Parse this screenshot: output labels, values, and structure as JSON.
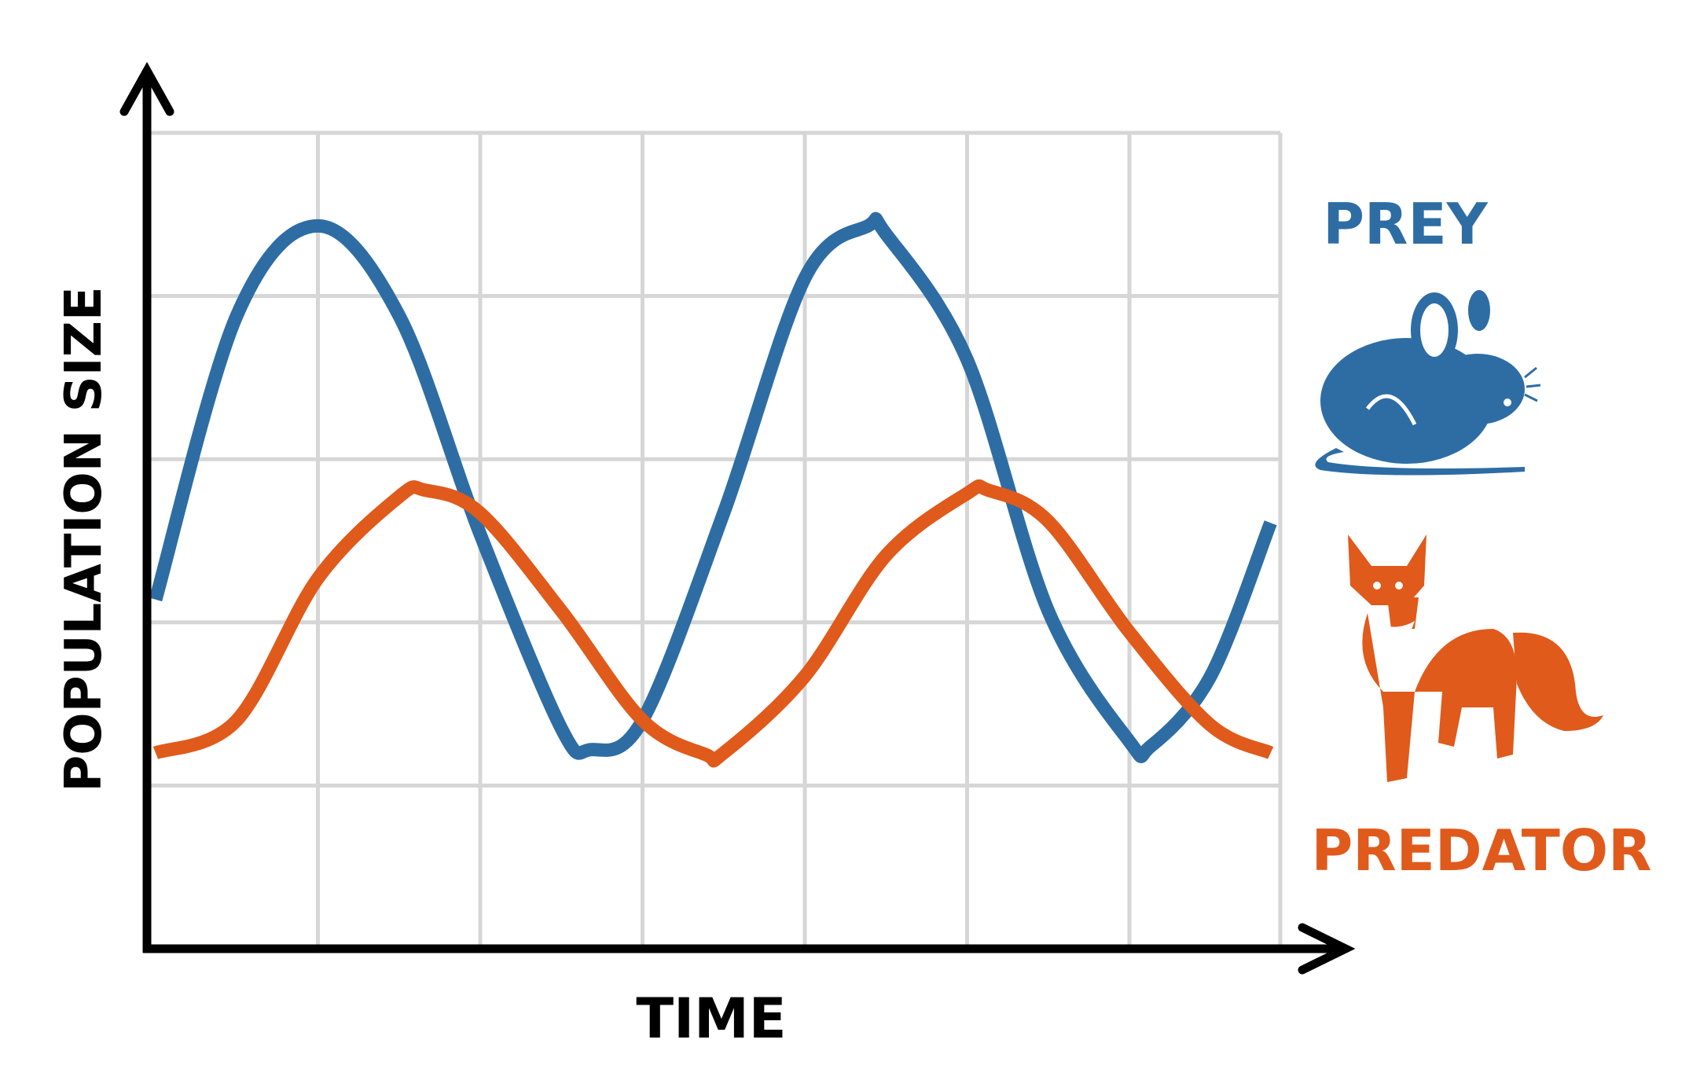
{
  "chart_data": {
    "type": "line",
    "title": "",
    "xlabel": "TIME",
    "ylabel": "POPULATION SIZE",
    "xlim": [
      0,
      6.88
    ],
    "ylim": [
      0,
      5
    ],
    "grid": true,
    "legend_placement": "right",
    "series": [
      {
        "name": "PREY",
        "color": "#2e6da4",
        "icon": "mouse-icon",
        "x": [
          0,
          0.5,
          1,
          1.5,
          2,
          2.5,
          2.68,
          3,
          3.5,
          4,
          4.39,
          4.5,
          5,
          5.5,
          6,
          6.13,
          6.5,
          6.87
        ],
        "y": [
          2.14,
          3.88,
          4.43,
          3.88,
          2.54,
          1.35,
          1.22,
          1.4,
          2.67,
          4.11,
          4.43,
          4.38,
          3.61,
          2.07,
          1.27,
          1.24,
          1.67,
          2.61
        ]
      },
      {
        "name": "PREDATOR",
        "color": "#e05a1b",
        "icon": "fox-icon",
        "x": [
          0,
          0.5,
          1,
          1.5,
          1.66,
          2,
          2.5,
          3,
          3.39,
          3.5,
          4,
          4.5,
          5,
          5.13,
          5.5,
          6,
          6.5,
          6.87
        ],
        "y": [
          1.2,
          1.4,
          2.27,
          2.77,
          2.81,
          2.67,
          2.07,
          1.4,
          1.19,
          1.2,
          1.67,
          2.41,
          2.79,
          2.81,
          2.62,
          1.94,
          1.37,
          1.2
        ]
      }
    ]
  }
}
